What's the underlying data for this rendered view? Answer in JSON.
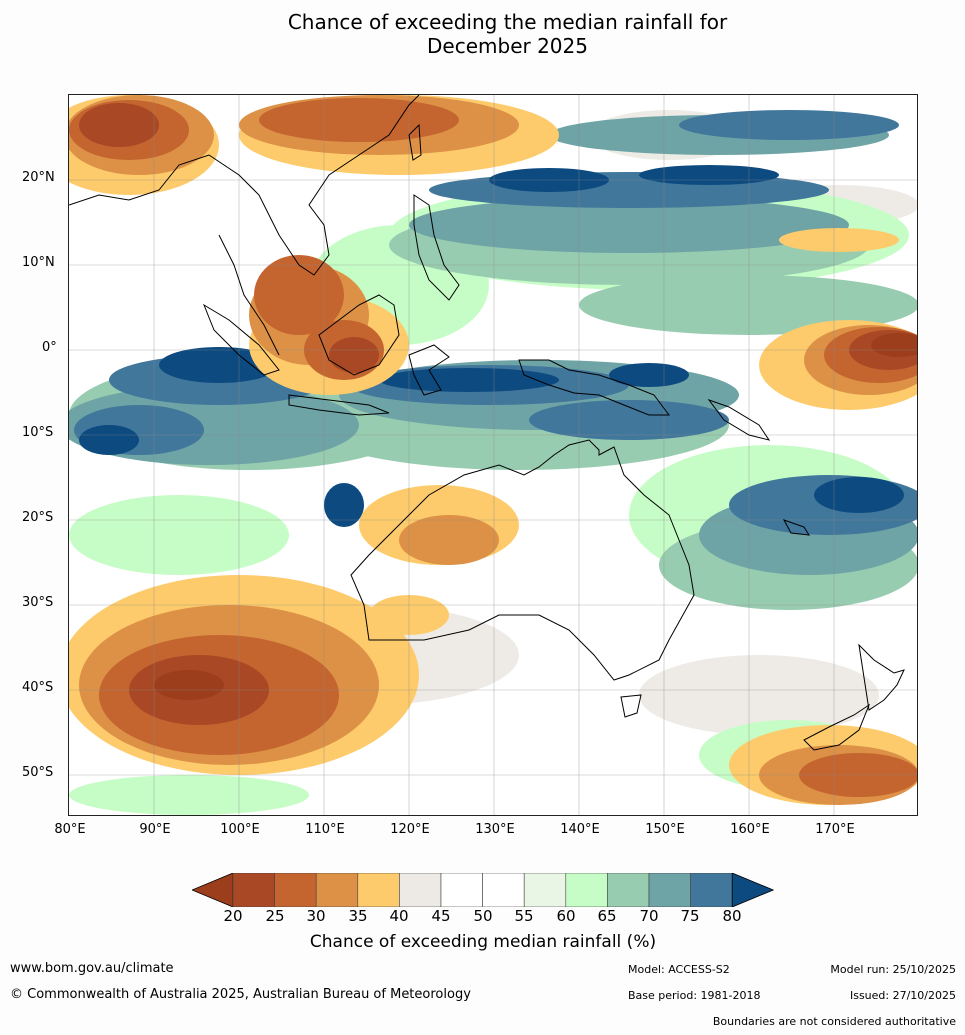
{
  "title": {
    "line1": "Chance of exceeding the median rainfall for",
    "line2": "December 2025"
  },
  "map": {
    "lat_labels": [
      "20°N",
      "10°N",
      "0°",
      "10°S",
      "20°S",
      "30°S",
      "40°S",
      "50°S"
    ],
    "lon_labels": [
      "80°E",
      "90°E",
      "100°E",
      "110°E",
      "120°E",
      "130°E",
      "140°E",
      "150°E",
      "160°E",
      "170°E"
    ]
  },
  "colorbar": {
    "ticks": [
      "20",
      "25",
      "30",
      "35",
      "40",
      "45",
      "50",
      "55",
      "60",
      "65",
      "70",
      "75",
      "80"
    ],
    "colors": [
      "#9c3d1c",
      "#a94825",
      "#c46530",
      "#dd9146",
      "#fdcb6b",
      "#edeae5",
      "#ffffff",
      "#ffffff",
      "#e9f6e6",
      "#c6fdc6",
      "#98ccb0",
      "#6ea4a5",
      "#41779b",
      "#0d4a80"
    ],
    "label": "Chance of exceeding median rainfall (%)"
  },
  "footer": {
    "website": "www.bom.gov.au/climate",
    "copyright": "© Commonwealth of Australia 2025, Australian Bureau of Meteorology",
    "model": "Model: ACCESS-S2",
    "base_period": "Base period: 1981-2018",
    "model_run": "Model run: 25/10/2025",
    "issued": "Issued: 27/10/2025",
    "boundaries": "Boundaries are not considered authoritative"
  }
}
